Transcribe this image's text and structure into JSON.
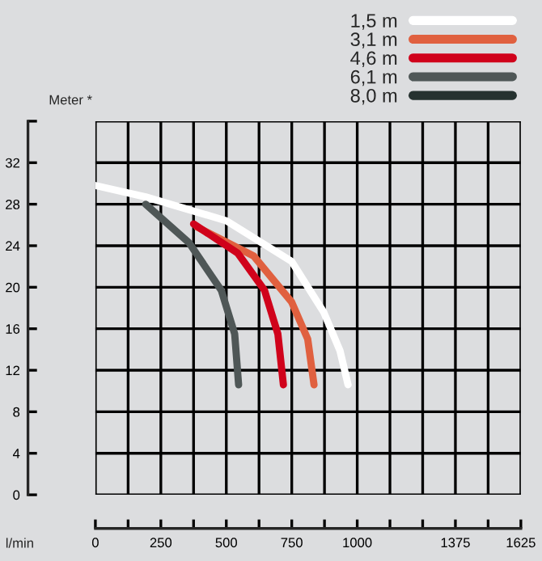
{
  "chart_data": {
    "type": "line",
    "xlabel": "l/min",
    "ylabel": "Meter *",
    "xlim": [
      0,
      1625
    ],
    "ylim": [
      0,
      36
    ],
    "xticks": [
      0,
      {
        "value": 125,
        "label": null
      },
      250,
      {
        "value": 375,
        "label": null
      },
      500,
      {
        "value": 625,
        "label": null
      },
      750,
      {
        "value": 875,
        "label": null
      },
      1000,
      {
        "value": 1125,
        "label": null
      },
      {
        "value": 1250,
        "label": null
      },
      1375,
      1625,
      {
        "value": 1500,
        "label": null
      }
    ],
    "yticks": [
      0,
      4,
      8,
      12,
      16,
      20,
      24,
      28,
      32,
      {
        "value": 36,
        "label": null
      }
    ],
    "grid": true,
    "legend": "top right",
    "line_style": "solid",
    "series": [
      {
        "name": "1,5 m",
        "color": "#ffffff",
        "x": [
          0,
          192,
          501,
          749,
          872,
          934,
          965
        ],
        "values": [
          29.8,
          28.7,
          26.4,
          22.5,
          17.6,
          13.9,
          10.6
        ]
      },
      {
        "name": "3,1 m",
        "color": "#e0603f",
        "x": [
          388,
          605,
          749,
          811,
          835
        ],
        "values": [
          25.8,
          23.0,
          18.6,
          15.0,
          10.6
        ]
      },
      {
        "name": "4,6 m",
        "color": "#d0021b",
        "x": [
          375,
          543,
          646,
          697,
          718
        ],
        "values": [
          26.1,
          23.3,
          19.7,
          15.5,
          10.6
        ]
      },
      {
        "name": "6,1 m",
        "color": "#4f5757",
        "x": [
          192,
          357,
          481,
          532,
          547
        ],
        "values": [
          28.0,
          24.3,
          19.7,
          15.5,
          10.6
        ]
      },
      {
        "name": "8,0 m",
        "color": "#263230"
      }
    ]
  }
}
